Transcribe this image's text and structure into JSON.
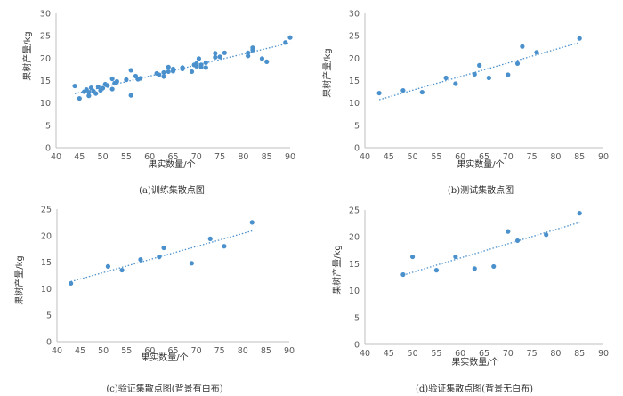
{
  "colors": {
    "point": "#4a90cc",
    "trendline": "#4a90cc",
    "axis": "#bfbfbf"
  },
  "chart_data": [
    {
      "type": "scatter",
      "caption": "(a)训练集散点图",
      "xlabel": "果实数量/个",
      "ylabel": "果树产量/kg",
      "xlim": [
        40,
        90
      ],
      "ylim": [
        0,
        30
      ],
      "xticks": [
        "40",
        "45",
        "50",
        "55",
        "60",
        "65",
        "70",
        "75",
        "80",
        "85",
        "90"
      ],
      "yticks": [
        "0",
        "5",
        "10",
        "15",
        "20",
        "25",
        "30"
      ],
      "trendline": "linear-dotted",
      "points": [
        [
          44,
          13.8
        ],
        [
          45,
          11
        ],
        [
          46,
          12.5
        ],
        [
          46.5,
          13
        ],
        [
          47,
          12.4
        ],
        [
          47,
          11.6
        ],
        [
          47.5,
          13.4
        ],
        [
          48,
          12.6
        ],
        [
          48.5,
          12.1
        ],
        [
          49,
          13.6
        ],
        [
          49.5,
          12.8
        ],
        [
          50,
          13.3
        ],
        [
          50.5,
          14.2
        ],
        [
          51,
          13.9
        ],
        [
          52,
          13.1
        ],
        [
          52,
          15.4
        ],
        [
          52.5,
          14.4
        ],
        [
          53,
          14.8
        ],
        [
          55,
          15.2
        ],
        [
          56,
          17.3
        ],
        [
          56,
          11.7
        ],
        [
          57,
          16
        ],
        [
          57.5,
          15.3
        ],
        [
          58,
          15.5
        ],
        [
          61.5,
          16.6
        ],
        [
          62,
          16.3
        ],
        [
          63,
          15.9
        ],
        [
          63,
          16.8
        ],
        [
          64,
          17
        ],
        [
          64,
          18
        ],
        [
          65,
          17.1
        ],
        [
          65,
          17.6
        ],
        [
          67,
          17.9
        ],
        [
          67,
          17.6
        ],
        [
          69,
          17
        ],
        [
          69.5,
          18.5
        ],
        [
          70,
          18.8
        ],
        [
          70,
          18.2
        ],
        [
          70.5,
          19.9
        ],
        [
          71,
          18
        ],
        [
          71,
          18.5
        ],
        [
          72,
          19
        ],
        [
          72,
          17.9
        ],
        [
          74,
          21.1
        ],
        [
          74,
          20.2
        ],
        [
          75,
          20.3
        ],
        [
          76,
          21.2
        ],
        [
          81,
          20.5
        ],
        [
          81,
          21.2
        ],
        [
          82,
          21.8
        ],
        [
          82,
          22.3
        ],
        [
          84,
          19.9
        ],
        [
          85,
          19.2
        ],
        [
          89,
          23.5
        ],
        [
          90,
          24.6
        ]
      ]
    },
    {
      "type": "scatter",
      "caption": "(b)测试集散点图",
      "xlabel": "果实数量/个",
      "ylabel": "果树产量/kg",
      "xlim": [
        40,
        90
      ],
      "ylim": [
        0,
        30
      ],
      "xticks": [
        "40",
        "45",
        "50",
        "55",
        "60",
        "65",
        "70",
        "75",
        "80",
        "85",
        "90"
      ],
      "yticks": [
        "0",
        "5",
        "10",
        "15",
        "20",
        "25",
        "30"
      ],
      "trendline": "linear-dotted",
      "points": [
        [
          43,
          12.2
        ],
        [
          48,
          12.8
        ],
        [
          52,
          12.4
        ],
        [
          57,
          15.6
        ],
        [
          59,
          14.3
        ],
        [
          63,
          16.4
        ],
        [
          64,
          18.4
        ],
        [
          66,
          15.6
        ],
        [
          70,
          16.3
        ],
        [
          72,
          18.8
        ],
        [
          73,
          22.6
        ],
        [
          76,
          21.3
        ],
        [
          85,
          24.4
        ]
      ]
    },
    {
      "type": "scatter",
      "caption": "(c)验证集散点图(背景有白布)",
      "xlabel": "果实数量/个",
      "ylabel": "果树产量/kg",
      "xlim": [
        40,
        90
      ],
      "ylim": [
        0,
        25
      ],
      "xticks": [
        "40",
        "45",
        "50",
        "55",
        "60",
        "65",
        "70",
        "75",
        "80",
        "85",
        "90"
      ],
      "yticks": [
        "0",
        "5",
        "10",
        "15",
        "20",
        "25"
      ],
      "trendline": "linear-dotted",
      "points": [
        [
          43,
          11
        ],
        [
          51,
          14.2
        ],
        [
          54,
          13.5
        ],
        [
          58,
          15.5
        ],
        [
          62,
          16
        ],
        [
          63,
          17.7
        ],
        [
          69,
          14.8
        ],
        [
          73,
          19.4
        ],
        [
          76,
          18
        ],
        [
          82,
          22.5
        ]
      ]
    },
    {
      "type": "scatter",
      "caption": "(d)验证集散点图(背景无白布)",
      "xlabel": "果实数量/个",
      "ylabel": "果树产量/kg",
      "xlim": [
        40,
        90
      ],
      "ylim": [
        0,
        25
      ],
      "xticks": [
        "40",
        "45",
        "50",
        "55",
        "60",
        "65",
        "70",
        "75",
        "80",
        "85",
        "90"
      ],
      "yticks": [
        "0",
        "5",
        "10",
        "15",
        "20",
        "25"
      ],
      "trendline": "linear-dotted",
      "points": [
        [
          48,
          13
        ],
        [
          50,
          16.3
        ],
        [
          55,
          13.8
        ],
        [
          59,
          16.3
        ],
        [
          63,
          14.1
        ],
        [
          67,
          14.5
        ],
        [
          70,
          21
        ],
        [
          72,
          19.3
        ],
        [
          78,
          20.4
        ],
        [
          85,
          24.4
        ]
      ]
    }
  ]
}
